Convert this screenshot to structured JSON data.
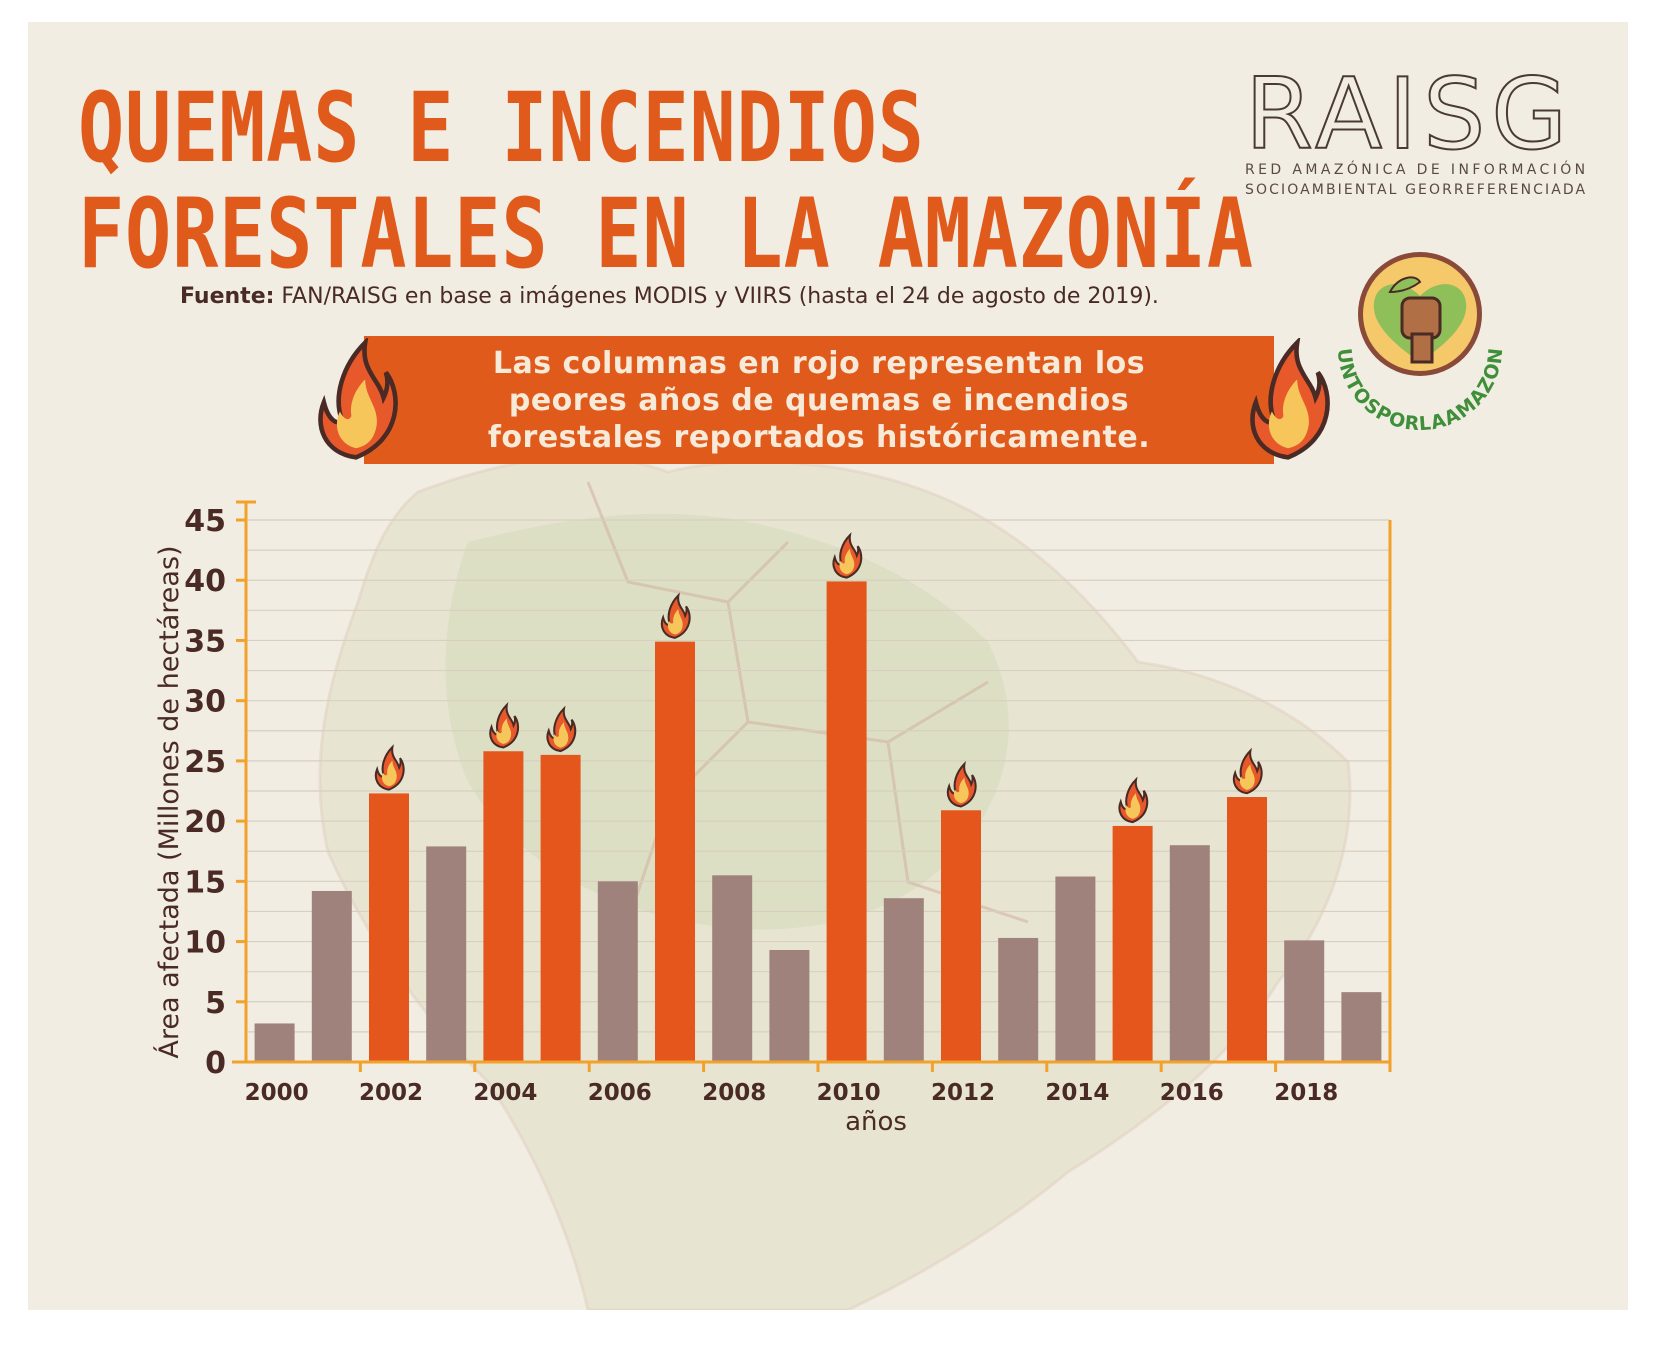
{
  "title": {
    "line1": "QUEMAS E INCENDIOS",
    "line2": "FORESTALES EN LA AMAZONÍA"
  },
  "source": {
    "label": "Fuente:",
    "text": "FAN/RAISG en base a imágenes MODIS y VIIRS  (hasta el 24 de agosto de 2019)."
  },
  "banner": {
    "line1": "Las columnas en rojo representan los",
    "line2": "peores años de quemas e incendios",
    "line3": "forestales reportados históricamente."
  },
  "logo": {
    "name": "RAISG",
    "line1": "RED AMAZÓNICA DE INFORMACIÓN",
    "line2": "SOCIOAMBIENTAL GEORREFERENCIADA"
  },
  "badge": {
    "hashtag": "#JUNTOSPORLAAMAZONIA"
  },
  "colors": {
    "title": "#e05a1c",
    "worst_bar": "#e4561c",
    "normal_bar": "#a0827c",
    "axis": "#f2a12a",
    "text": "#4a2a25"
  },
  "chart_data": {
    "type": "bar",
    "xlabel": "años",
    "ylabel": "Área afectada (Millones de hectáreas)",
    "ylim": [
      0,
      45
    ],
    "yticks": [
      0,
      5,
      10,
      15,
      20,
      25,
      30,
      35,
      40,
      45
    ],
    "xtick_labels": [
      "2000",
      "2002",
      "2004",
      "2006",
      "2008",
      "2010",
      "2012",
      "2014",
      "2016",
      "2018"
    ],
    "categories": [
      "2000",
      "2001",
      "2002",
      "2003",
      "2004",
      "2005",
      "2006",
      "2007",
      "2008",
      "2009",
      "2010",
      "2011",
      "2012",
      "2013",
      "2014",
      "2015",
      "2016",
      "2017",
      "2018",
      "2019"
    ],
    "values": [
      3.2,
      14.2,
      22.3,
      17.9,
      25.8,
      25.5,
      15.0,
      34.9,
      15.5,
      9.3,
      39.9,
      13.6,
      20.9,
      10.3,
      15.4,
      19.6,
      18.0,
      22.0,
      10.1,
      5.8
    ],
    "worst_years": [
      "2002",
      "2004",
      "2005",
      "2007",
      "2010",
      "2012",
      "2015",
      "2017"
    ],
    "grid": true
  }
}
